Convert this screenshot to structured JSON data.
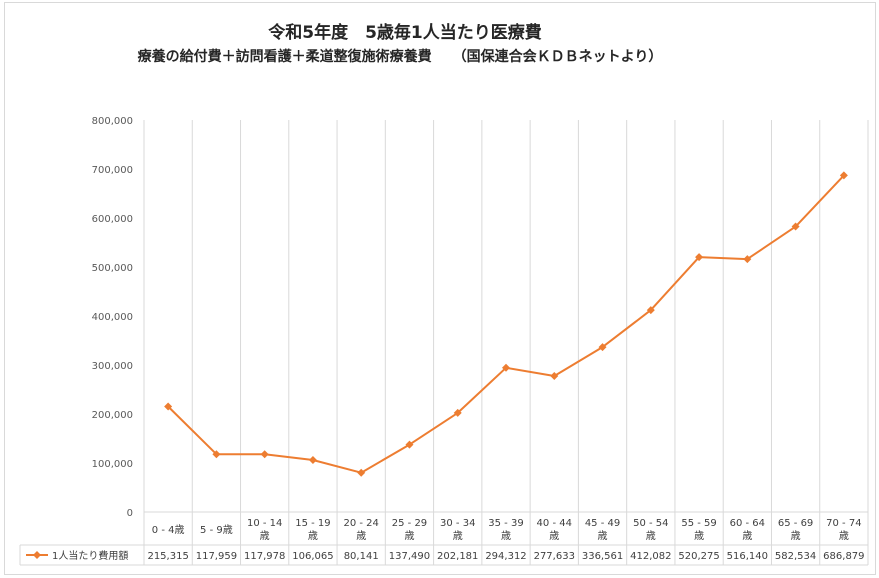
{
  "chart_data": {
    "type": "line",
    "title": "令和5年度　5歳毎1人当たり医療費",
    "subtitle": "療養の給付費＋訪問看護＋柔道整復施術療養費　　（国保連合会ＫＤＢネットより）",
    "categories": [
      [
        "0 -  4歳"
      ],
      [
        "5 -  9歳"
      ],
      [
        "10 - 14",
        "歳"
      ],
      [
        "15 - 19",
        "歳"
      ],
      [
        "20 - 24",
        "歳"
      ],
      [
        "25 - 29",
        "歳"
      ],
      [
        "30 - 34",
        "歳"
      ],
      [
        "35 - 39",
        "歳"
      ],
      [
        "40 - 44",
        "歳"
      ],
      [
        "45 - 49",
        "歳"
      ],
      [
        "50 - 54",
        "歳"
      ],
      [
        "55 - 59",
        "歳"
      ],
      [
        "60 - 64",
        "歳"
      ],
      [
        "65 - 69",
        "歳"
      ],
      [
        "70 - 74",
        "歳"
      ]
    ],
    "series": [
      {
        "name": "1人当たり費用額",
        "values": [
          215315,
          117959,
          117978,
          106065,
          80141,
          137490,
          202181,
          294312,
          277633,
          336561,
          412082,
          520275,
          516140,
          582534,
          686879
        ],
        "labels": [
          "215,315",
          "117,959",
          "117,978",
          "106,065",
          "80,141",
          "137,490",
          "202,181",
          "294,312",
          "277,633",
          "336,561",
          "412,082",
          "520,275",
          "516,140",
          "582,534",
          "686,879"
        ],
        "color": "#ED7D31"
      }
    ],
    "y_ticks": [
      "0",
      "100,000",
      "200,000",
      "300,000",
      "400,000",
      "500,000",
      "600,000",
      "700,000",
      "800,000"
    ],
    "ylim": [
      0,
      800000
    ],
    "legend": "data-table",
    "grid": "vertical",
    "gridline_color": "#d9d9d9"
  }
}
